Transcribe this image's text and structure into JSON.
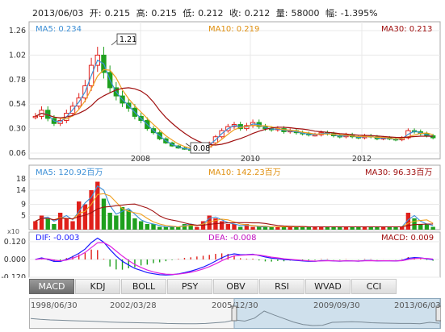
{
  "header": {
    "date": "2013/06/03",
    "open_label": "开:",
    "open": "0.215",
    "high_label": "高:",
    "high": "0.215",
    "low_label": "低:",
    "low": "0.212",
    "close_label": "收:",
    "close": "0.212",
    "volume_label": "量:",
    "volume": "58000",
    "change_label": "幅:",
    "change": "-1.395%"
  },
  "price_panel": {
    "ma5": "MA5: 0.234",
    "ma10": "MA10: 0.219",
    "ma30": "MA30: 0.213",
    "y_ticks": [
      "1.26",
      "1.02",
      "0.78",
      "0.54",
      "0.30",
      "0.06"
    ],
    "x_ticks": [
      "2008",
      "2010",
      "2012"
    ],
    "high_callout": "1.21",
    "low_callout": "0.08"
  },
  "volume_panel": {
    "ma5": "MA5: 120.92百万",
    "ma10": "MA10: 142.23百万",
    "ma30": "MA30: 96.33百万",
    "y_ticks": [
      "18",
      "14",
      "9",
      "5"
    ],
    "unit": "x10"
  },
  "macd_panel": {
    "dif": "DIF: -0.003",
    "dea": "DEA: -0.008",
    "macd": "MACD: 0.009",
    "y_ticks": [
      "0.120",
      "0.000",
      "-0.120"
    ]
  },
  "indicator_tabs": [
    "MACD",
    "KDJ",
    "BOLL",
    "PSY",
    "OBV",
    "RSI",
    "WVAD",
    "CCI"
  ],
  "navigator": {
    "dates": [
      "1998/06/30",
      "2002/03/28",
      "2005/12/30",
      "2009/09/30",
      "2013/06/03"
    ]
  },
  "colors": {
    "up": "#e0201b",
    "down": "#1ea01e",
    "ma5": "#3c8fd6",
    "ma10": "#f0a020",
    "ma30": "#a01010",
    "dif": "#1a1aff",
    "dea": "#e020e0",
    "grid": "#e8e8e8",
    "frame": "#a8a8a8"
  },
  "chart_data": {
    "type": "candlestick",
    "title": "",
    "x_ticks": [
      "2008",
      "2010",
      "2012"
    ],
    "ylim": [
      0.06,
      1.26
    ],
    "close_series": [
      0.42,
      0.48,
      0.4,
      0.35,
      0.38,
      0.45,
      0.52,
      0.6,
      0.72,
      0.92,
      1.02,
      0.85,
      0.7,
      0.62,
      0.55,
      0.5,
      0.42,
      0.38,
      0.3,
      0.26,
      0.2,
      0.16,
      0.13,
      0.11,
      0.1,
      0.09,
      0.1,
      0.12,
      0.16,
      0.22,
      0.28,
      0.32,
      0.34,
      0.3,
      0.33,
      0.36,
      0.32,
      0.3,
      0.29,
      0.3,
      0.27,
      0.28,
      0.26,
      0.25,
      0.24,
      0.24,
      0.26,
      0.25,
      0.23,
      0.22,
      0.24,
      0.22,
      0.21,
      0.23,
      0.22,
      0.2,
      0.21,
      0.2,
      0.19,
      0.21,
      0.28,
      0.27,
      0.25,
      0.23,
      0.21
    ],
    "volume_series": [
      3,
      5,
      4,
      2,
      6,
      4,
      3,
      10,
      9,
      14,
      17,
      11,
      6,
      5,
      8,
      7,
      4,
      3,
      2,
      2,
      1,
      1,
      1,
      1,
      2,
      2,
      1,
      3,
      5,
      4,
      3,
      2,
      2,
      1,
      2,
      1,
      1,
      1,
      1,
      1,
      1,
      1,
      1,
      1,
      1,
      1,
      1,
      1,
      1,
      1,
      1,
      1,
      1,
      1,
      1,
      1,
      1,
      1,
      1,
      1,
      6,
      4,
      2,
      2,
      1
    ],
    "volume_ylim": [
      0,
      18
    ],
    "macd_ylim": [
      -0.12,
      0.12
    ]
  }
}
